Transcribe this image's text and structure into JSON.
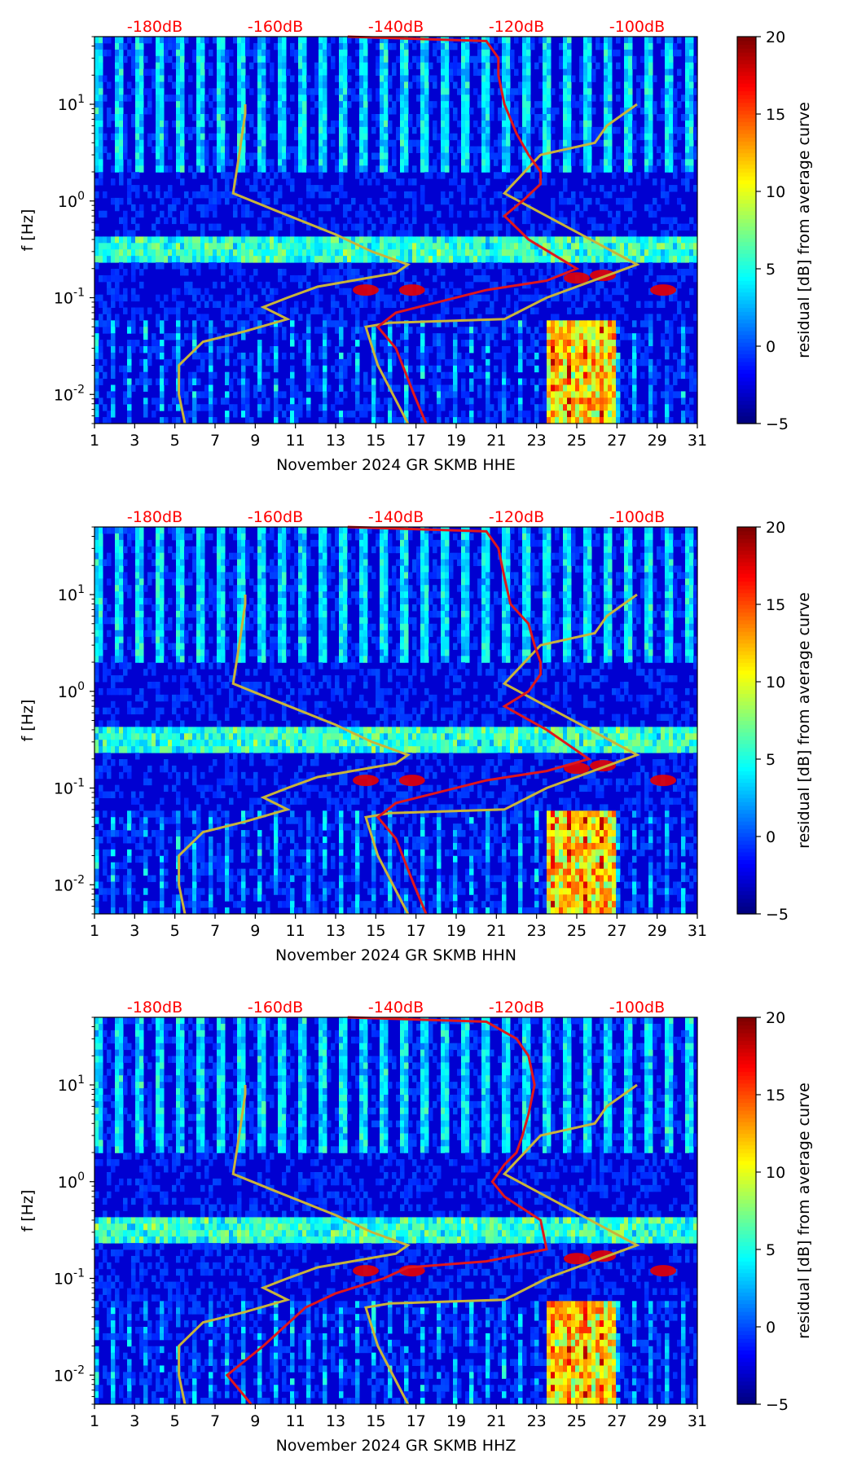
{
  "chart_data": [
    {
      "type": "heatmap",
      "title": "November 2024 GR SKMB  HHE",
      "xlabel": "November 2024 GR SKMB  HHE",
      "ylabel": "f [Hz]",
      "x_ticks": [
        "1",
        "3",
        "5",
        "7",
        "9",
        "11",
        "13",
        "15",
        "17",
        "19",
        "21",
        "23",
        "25",
        "27",
        "29",
        "31"
      ],
      "xlim": [
        1,
        31
      ],
      "y_ticks": [
        {
          "value": 10,
          "label": "10^1"
        },
        {
          "value": 1,
          "label": "10^0"
        },
        {
          "value": 0.1,
          "label": "10^-1"
        },
        {
          "value": 0.01,
          "label": "10^-2"
        }
      ],
      "ylim": [
        0.005,
        50
      ],
      "db_ticks": [
        {
          "value": -180,
          "label": "-180dB"
        },
        {
          "value": -160,
          "label": "-160dB"
        },
        {
          "value": -140,
          "label": "-140dB"
        },
        {
          "value": -120,
          "label": "-120dB"
        },
        {
          "value": -100,
          "label": "-100dB"
        }
      ],
      "db_range": [
        -190,
        -90
      ],
      "colorbar": {
        "label": "residual [dB] from average curve",
        "range": [
          -5,
          20
        ],
        "ticks": [
          "−5",
          "0",
          "5",
          "10",
          "15",
          "20"
        ]
      },
      "red_curve": [
        [
          -148,
          50
        ],
        [
          -125,
          45
        ],
        [
          -123,
          30
        ],
        [
          -123,
          20
        ],
        [
          -122,
          10
        ],
        [
          -120,
          5
        ],
        [
          -118,
          3
        ],
        [
          -116,
          2
        ],
        [
          -116,
          1.5
        ],
        [
          -119,
          1
        ],
        [
          -122,
          0.7
        ],
        [
          -118,
          0.4
        ],
        [
          -110,
          0.2
        ],
        [
          -115,
          0.15
        ],
        [
          -125,
          0.12
        ],
        [
          -140,
          0.07
        ],
        [
          -143,
          0.05
        ],
        [
          -140,
          0.03
        ],
        [
          -137,
          0.01
        ],
        [
          -135,
          0.005
        ]
      ],
      "yellow_curve": [
        [
          -175,
          0.005
        ],
        [
          -176,
          0.01
        ],
        [
          -176,
          0.02
        ],
        [
          -172,
          0.035
        ],
        [
          -165,
          0.045
        ],
        [
          -158,
          0.06
        ],
        [
          -162,
          0.08
        ],
        [
          -158,
          0.1
        ],
        [
          -153,
          0.13
        ],
        [
          -140,
          0.18
        ],
        [
          -138,
          0.22
        ],
        [
          -144,
          0.3
        ],
        [
          -150,
          0.45
        ],
        [
          -160,
          0.8
        ],
        [
          -167,
          1.2
        ],
        [
          -166,
          3
        ],
        [
          -165,
          8
        ],
        [
          -165,
          10
        ]
      ],
      "yellow_curve2": [
        [
          -138,
          0.005
        ],
        [
          -143,
          0.02
        ],
        [
          -145,
          0.05
        ],
        [
          -141,
          0.055
        ],
        [
          -122,
          0.06
        ],
        [
          -115,
          0.1
        ],
        [
          -100,
          0.22
        ],
        [
          -122,
          1.2
        ],
        [
          -116,
          3
        ],
        [
          -107,
          4
        ],
        [
          -105,
          6
        ],
        [
          -100,
          10
        ]
      ],
      "db_curve_labels": []
    },
    {
      "type": "heatmap",
      "title": "November 2024 GR SKMB  HHN",
      "xlabel": "November 2024 GR SKMB  HHN",
      "ylabel": "f [Hz]",
      "x_ticks": [
        "1",
        "3",
        "5",
        "7",
        "9",
        "11",
        "13",
        "15",
        "17",
        "19",
        "21",
        "23",
        "25",
        "27",
        "29",
        "31"
      ],
      "xlim": [
        1,
        31
      ],
      "y_ticks": [
        {
          "value": 10,
          "label": "10^1"
        },
        {
          "value": 1,
          "label": "10^0"
        },
        {
          "value": 0.1,
          "label": "10^-1"
        },
        {
          "value": 0.01,
          "label": "10^-2"
        }
      ],
      "ylim": [
        0.005,
        50
      ],
      "db_ticks": [
        {
          "value": -180,
          "label": "-180dB"
        },
        {
          "value": -160,
          "label": "-160dB"
        },
        {
          "value": -140,
          "label": "-140dB"
        },
        {
          "value": -120,
          "label": "-120dB"
        },
        {
          "value": -100,
          "label": "-100dB"
        }
      ],
      "db_range": [
        -190,
        -90
      ],
      "colorbar": {
        "label": "residual [dB] from average curve",
        "range": [
          -5,
          20
        ],
        "ticks": [
          "−5",
          "0",
          "5",
          "10",
          "15",
          "20"
        ]
      },
      "red_curve": [
        [
          -148,
          50
        ],
        [
          -125,
          45
        ],
        [
          -123,
          30
        ],
        [
          -122,
          15
        ],
        [
          -121,
          8
        ],
        [
          -118,
          5
        ],
        [
          -117,
          3
        ],
        [
          -116,
          2
        ],
        [
          -116,
          1.5
        ],
        [
          -118,
          1
        ],
        [
          -122,
          0.7
        ],
        [
          -115,
          0.4
        ],
        [
          -108,
          0.2
        ],
        [
          -115,
          0.15
        ],
        [
          -125,
          0.12
        ],
        [
          -140,
          0.07
        ],
        [
          -143,
          0.05
        ],
        [
          -140,
          0.03
        ],
        [
          -137,
          0.01
        ],
        [
          -135,
          0.005
        ]
      ],
      "yellow_curve": [
        [
          -175,
          0.005
        ],
        [
          -176,
          0.01
        ],
        [
          -176,
          0.02
        ],
        [
          -172,
          0.035
        ],
        [
          -165,
          0.045
        ],
        [
          -158,
          0.06
        ],
        [
          -162,
          0.08
        ],
        [
          -158,
          0.1
        ],
        [
          -153,
          0.13
        ],
        [
          -140,
          0.18
        ],
        [
          -138,
          0.22
        ],
        [
          -144,
          0.3
        ],
        [
          -150,
          0.45
        ],
        [
          -160,
          0.8
        ],
        [
          -167,
          1.2
        ],
        [
          -166,
          3
        ],
        [
          -165,
          8
        ],
        [
          -165,
          10
        ]
      ],
      "yellow_curve2": [
        [
          -138,
          0.005
        ],
        [
          -143,
          0.02
        ],
        [
          -145,
          0.05
        ],
        [
          -141,
          0.055
        ],
        [
          -122,
          0.06
        ],
        [
          -115,
          0.1
        ],
        [
          -100,
          0.22
        ],
        [
          -122,
          1.2
        ],
        [
          -116,
          3
        ],
        [
          -107,
          4
        ],
        [
          -105,
          6
        ],
        [
          -100,
          10
        ]
      ],
      "db_curve_labels": []
    },
    {
      "type": "heatmap",
      "title": "November 2024 GR SKMB  HHZ",
      "xlabel": "November 2024 GR SKMB  HHZ",
      "ylabel": "f [Hz]",
      "x_ticks": [
        "1",
        "3",
        "5",
        "7",
        "9",
        "11",
        "13",
        "15",
        "17",
        "19",
        "21",
        "23",
        "25",
        "27",
        "29",
        "31"
      ],
      "xlim": [
        1,
        31
      ],
      "y_ticks": [
        {
          "value": 10,
          "label": "10^1"
        },
        {
          "value": 1,
          "label": "10^0"
        },
        {
          "value": 0.1,
          "label": "10^-1"
        },
        {
          "value": 0.01,
          "label": "10^-2"
        }
      ],
      "ylim": [
        0.005,
        50
      ],
      "db_ticks": [
        {
          "value": -180,
          "label": "-180dB"
        },
        {
          "value": -160,
          "label": "-160dB"
        },
        {
          "value": -140,
          "label": "-140dB"
        },
        {
          "value": -120,
          "label": "-120dB"
        },
        {
          "value": -100,
          "label": "-100dB"
        }
      ],
      "db_range": [
        -190,
        -90
      ],
      "colorbar": {
        "label": "residual [dB] from average curve",
        "range": [
          -5,
          20
        ],
        "ticks": [
          "−5",
          "0",
          "5",
          "10",
          "15",
          "20"
        ]
      },
      "red_curve": [
        [
          -148,
          50
        ],
        [
          -125,
          45
        ],
        [
          -120,
          30
        ],
        [
          -118,
          20
        ],
        [
          -117,
          10
        ],
        [
          -118,
          5
        ],
        [
          -119,
          3
        ],
        [
          -120,
          2
        ],
        [
          -122,
          1.5
        ],
        [
          -124,
          1
        ],
        [
          -122,
          0.7
        ],
        [
          -116,
          0.4
        ],
        [
          -115,
          0.2
        ],
        [
          -125,
          0.15
        ],
        [
          -138,
          0.13
        ],
        [
          -142,
          0.1
        ],
        [
          -150,
          0.07
        ],
        [
          -155,
          0.05
        ],
        [
          -162,
          0.02
        ],
        [
          -168,
          0.01
        ],
        [
          -164,
          0.005
        ]
      ],
      "yellow_curve": [
        [
          -175,
          0.005
        ],
        [
          -176,
          0.01
        ],
        [
          -176,
          0.02
        ],
        [
          -172,
          0.035
        ],
        [
          -165,
          0.045
        ],
        [
          -158,
          0.06
        ],
        [
          -162,
          0.08
        ],
        [
          -158,
          0.1
        ],
        [
          -153,
          0.13
        ],
        [
          -140,
          0.18
        ],
        [
          -138,
          0.22
        ],
        [
          -144,
          0.3
        ],
        [
          -150,
          0.45
        ],
        [
          -160,
          0.8
        ],
        [
          -167,
          1.2
        ],
        [
          -166,
          3
        ],
        [
          -165,
          8
        ],
        [
          -165,
          10
        ]
      ],
      "yellow_curve2": [
        [
          -138,
          0.005
        ],
        [
          -143,
          0.02
        ],
        [
          -145,
          0.05
        ],
        [
          -141,
          0.055
        ],
        [
          -122,
          0.06
        ],
        [
          -115,
          0.1
        ],
        [
          -100,
          0.22
        ],
        [
          -122,
          1.2
        ],
        [
          -116,
          3
        ],
        [
          -107,
          4
        ],
        [
          -105,
          6
        ],
        [
          -100,
          10
        ]
      ],
      "db_curve_labels": []
    }
  ],
  "colors": {
    "red_curve": "#e0171b",
    "yellow_curve": "#c9b43a",
    "db_label": "#ff0000"
  }
}
